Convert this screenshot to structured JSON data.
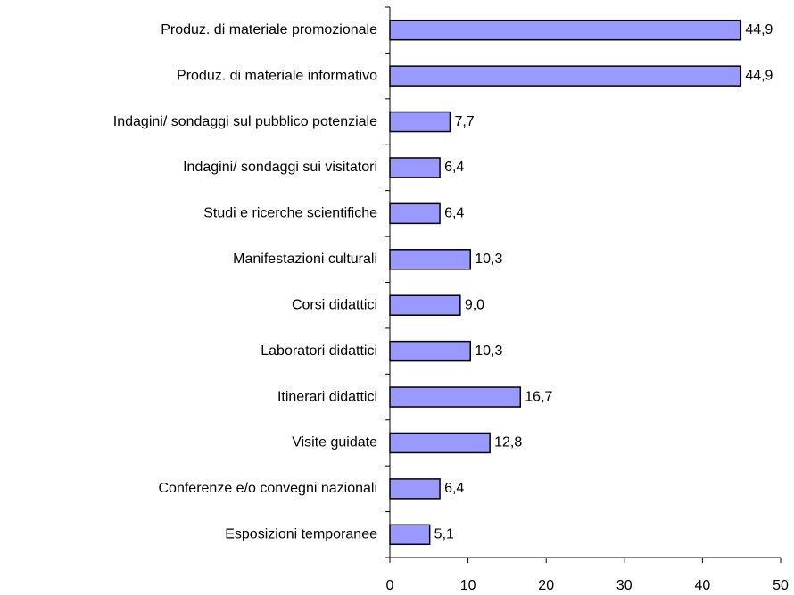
{
  "chart_data": {
    "type": "hbar",
    "categories": [
      "Produz. di materiale promozionale",
      "Produz. di materiale informativo",
      "Indagini/ sondaggi sul pubblico potenziale",
      "Indagini/ sondaggi sui visitatori",
      "Studi e ricerche scientifiche",
      "Manifestazioni culturali",
      "Corsi didattici",
      "Laboratori didattici",
      "Itinerari didattici",
      "Visite guidate",
      "Conferenze e/o convegni nazionali",
      "Esposizioni temporanee"
    ],
    "values": [
      44.9,
      44.9,
      7.7,
      6.4,
      6.4,
      10.3,
      9.0,
      10.3,
      16.7,
      12.8,
      6.4,
      5.1
    ],
    "value_labels": [
      "44,9",
      "44,9",
      "7,7",
      "6,4",
      "6,4",
      "10,3",
      "9,0",
      "10,3",
      "16,7",
      "12,8",
      "6,4",
      "5,1"
    ],
    "color": "#9999ff",
    "xlim": [
      0,
      50
    ],
    "xticks": [
      0,
      10,
      20,
      30,
      40,
      50
    ]
  }
}
